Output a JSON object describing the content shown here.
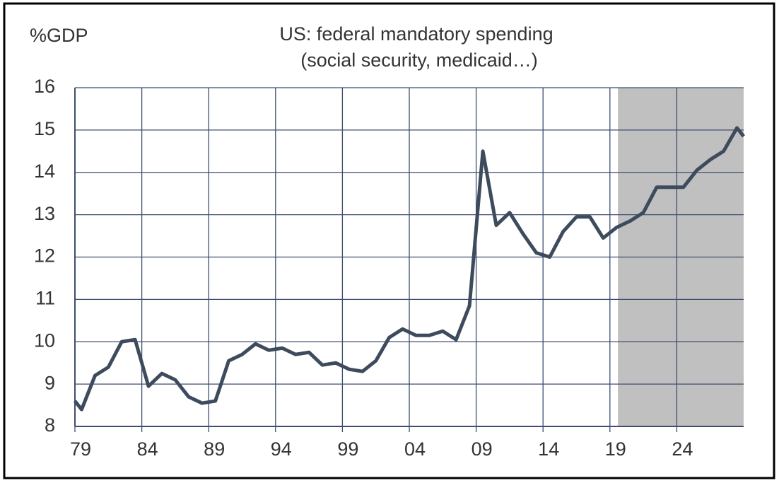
{
  "chart_data": {
    "type": "line",
    "title": "US: federal mandatory spending",
    "subtitle": "(social security, medicaid…)",
    "y_label": "%GDP",
    "x": [
      1979,
      1979.5,
      1980.5,
      1981.5,
      1982.5,
      1983.5,
      1984.5,
      1985.5,
      1986.5,
      1987.5,
      1988.5,
      1989.5,
      1990.5,
      1991.5,
      1992.5,
      1993.5,
      1994.5,
      1995.5,
      1996.5,
      1997.5,
      1998.5,
      1999.5,
      2000.5,
      2001.5,
      2002.5,
      2003.5,
      2004.5,
      2005.5,
      2006.5,
      2007.5,
      2008.5,
      2009.5,
      2010.5,
      2011.5,
      2012.5,
      2013.5,
      2014.5,
      2015.5,
      2016.5,
      2017.5,
      2018.5,
      2019.5,
      2020.5,
      2021.5,
      2022.5,
      2023.5,
      2024.5,
      2025.5,
      2026.5,
      2027.5,
      2028.5,
      2029
    ],
    "series": [
      {
        "name": "US: federal mandatory spending",
        "color": "#3d4b5c",
        "values": [
          8.6,
          8.4,
          9.2,
          9.4,
          10.0,
          10.05,
          8.95,
          9.25,
          9.1,
          8.7,
          8.55,
          8.6,
          9.55,
          9.7,
          9.95,
          9.8,
          9.85,
          9.7,
          9.75,
          9.45,
          9.5,
          9.35,
          9.3,
          9.55,
          10.1,
          10.3,
          10.15,
          10.15,
          10.25,
          10.05,
          10.85,
          14.5,
          12.75,
          13.05,
          12.55,
          12.1,
          12.0,
          12.6,
          12.95,
          12.95,
          12.45,
          12.7,
          12.85,
          13.05,
          13.65,
          13.65,
          13.65,
          14.05,
          14.3,
          14.5,
          15.05,
          14.85
        ]
      }
    ],
    "xlim": [
      1979,
      2029
    ],
    "xticks": [
      {
        "value": 1979,
        "label": "79"
      },
      {
        "value": 1984,
        "label": "84"
      },
      {
        "value": 1989,
        "label": "89"
      },
      {
        "value": 1994,
        "label": "94"
      },
      {
        "value": 1999,
        "label": "99"
      },
      {
        "value": 2004,
        "label": "04"
      },
      {
        "value": 2009,
        "label": "09"
      },
      {
        "value": 2014,
        "label": "14"
      },
      {
        "value": 2019,
        "label": "19"
      },
      {
        "value": 2024,
        "label": "24"
      }
    ],
    "ylim": [
      8,
      16
    ],
    "yticks": [
      8,
      9,
      10,
      11,
      12,
      13,
      14,
      15,
      16
    ],
    "shaded_x": [
      2019.6,
      2029
    ],
    "shade_color": "#c0c0c0",
    "grid": true
  }
}
